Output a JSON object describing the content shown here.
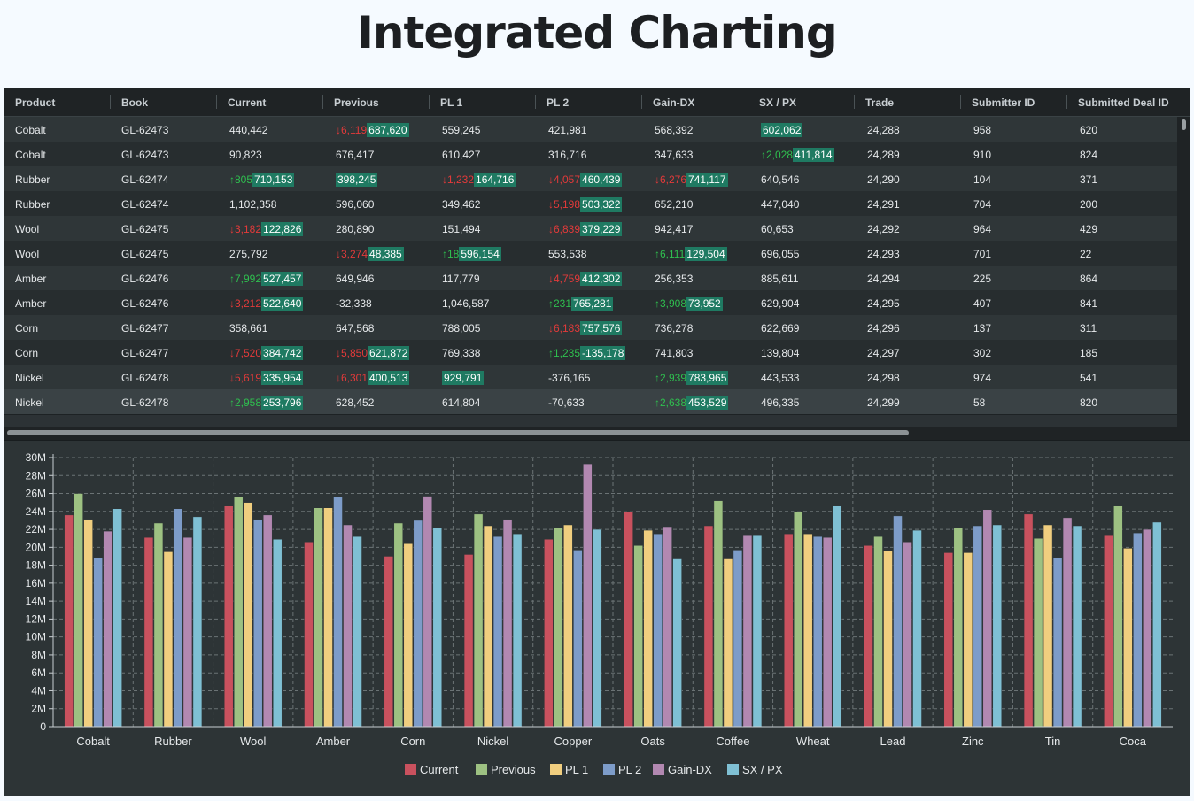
{
  "page": {
    "title": "Integrated Charting"
  },
  "grid": {
    "columns": [
      "Product",
      "Book",
      "Current",
      "Previous",
      "PL 1",
      "PL 2",
      "Gain-DX",
      "SX / PX",
      "Trade",
      "Submitter ID",
      "Submitted Deal ID"
    ],
    "rows": [
      {
        "product": "Cobalt",
        "book": "GL-62473",
        "current": {
          "v": "440,442"
        },
        "previous": {
          "d": "↓6,119",
          "dir": "down",
          "v": "687,620",
          "f": true
        },
        "pl1": {
          "v": "559,245"
        },
        "pl2": {
          "v": "421,981"
        },
        "gain": {
          "v": "568,392"
        },
        "sxpx": {
          "v": "602,062",
          "f": true
        },
        "trade": "24,288",
        "submitter": "958",
        "deal": "620"
      },
      {
        "product": "Cobalt",
        "book": "GL-62473",
        "current": {
          "v": "90,823"
        },
        "previous": {
          "v": "676,417"
        },
        "pl1": {
          "v": "610,427"
        },
        "pl2": {
          "v": "316,716"
        },
        "gain": {
          "v": "347,633"
        },
        "sxpx": {
          "d": "↑2,028",
          "dir": "up",
          "v": "411,814",
          "f": true
        },
        "trade": "24,289",
        "submitter": "910",
        "deal": "824"
      },
      {
        "product": "Rubber",
        "book": "GL-62474",
        "current": {
          "d": "↑805",
          "dir": "up",
          "v": "710,153",
          "f": true
        },
        "previous": {
          "v": "398,245",
          "f": true
        },
        "pl1": {
          "d": "↓1,232",
          "dir": "down",
          "v": "164,716",
          "f": true
        },
        "pl2": {
          "d": "↓4,057",
          "dir": "down",
          "v": "460,439",
          "f": true
        },
        "gain": {
          "d": "↓6,276",
          "dir": "down",
          "v": "741,117",
          "f": true
        },
        "sxpx": {
          "v": "640,546"
        },
        "trade": "24,290",
        "submitter": "104",
        "deal": "371"
      },
      {
        "product": "Rubber",
        "book": "GL-62474",
        "current": {
          "v": "1,102,358"
        },
        "previous": {
          "v": "596,060"
        },
        "pl1": {
          "v": "349,462"
        },
        "pl2": {
          "d": "↓5,198",
          "dir": "down",
          "v": "503,322",
          "f": true
        },
        "gain": {
          "v": "652,210"
        },
        "sxpx": {
          "v": "447,040"
        },
        "trade": "24,291",
        "submitter": "704",
        "deal": "200"
      },
      {
        "product": "Wool",
        "book": "GL-62475",
        "current": {
          "d": "↓3,182",
          "dir": "down",
          "v": "122,826",
          "f": true
        },
        "previous": {
          "v": "280,890"
        },
        "pl1": {
          "v": "151,494"
        },
        "pl2": {
          "d": "↓6,839",
          "dir": "down",
          "v": "379,229",
          "f": true
        },
        "gain": {
          "v": "942,417"
        },
        "sxpx": {
          "v": "60,653"
        },
        "trade": "24,292",
        "submitter": "964",
        "deal": "429"
      },
      {
        "product": "Wool",
        "book": "GL-62475",
        "current": {
          "v": "275,792"
        },
        "previous": {
          "d": "↓3,274",
          "dir": "down",
          "v": "48,385",
          "f": true
        },
        "pl1": {
          "d": "↑18",
          "dir": "up",
          "v": "596,154",
          "f": true
        },
        "pl2": {
          "v": "553,538"
        },
        "gain": {
          "d": "↑6,111",
          "dir": "up",
          "v": "129,504",
          "f": true
        },
        "sxpx": {
          "v": "696,055"
        },
        "trade": "24,293",
        "submitter": "701",
        "deal": "22"
      },
      {
        "product": "Amber",
        "book": "GL-62476",
        "current": {
          "d": "↑7,992",
          "dir": "up",
          "v": "527,457",
          "f": true
        },
        "previous": {
          "v": "649,946"
        },
        "pl1": {
          "v": "117,779"
        },
        "pl2": {
          "d": "↓4,759",
          "dir": "down",
          "v": "412,302",
          "f": true
        },
        "gain": {
          "v": "256,353"
        },
        "sxpx": {
          "v": "885,611"
        },
        "trade": "24,294",
        "submitter": "225",
        "deal": "864"
      },
      {
        "product": "Amber",
        "book": "GL-62476",
        "current": {
          "d": "↓3,212",
          "dir": "down",
          "v": "522,640",
          "f": true
        },
        "previous": {
          "v": "-32,338"
        },
        "pl1": {
          "v": "1,046,587"
        },
        "pl2": {
          "d": "↑231",
          "dir": "up",
          "v": "765,281",
          "f": true
        },
        "gain": {
          "d": "↑3,908",
          "dir": "up",
          "v": "73,952",
          "f": true
        },
        "sxpx": {
          "v": "629,904"
        },
        "trade": "24,295",
        "submitter": "407",
        "deal": "841"
      },
      {
        "product": "Corn",
        "book": "GL-62477",
        "current": {
          "v": "358,661"
        },
        "previous": {
          "v": "647,568"
        },
        "pl1": {
          "v": "788,005"
        },
        "pl2": {
          "d": "↓6,183",
          "dir": "down",
          "v": "757,576",
          "f": true
        },
        "gain": {
          "v": "736,278"
        },
        "sxpx": {
          "v": "622,669"
        },
        "trade": "24,296",
        "submitter": "137",
        "deal": "311"
      },
      {
        "product": "Corn",
        "book": "GL-62477",
        "current": {
          "d": "↓7,520",
          "dir": "down",
          "v": "384,742",
          "f": true
        },
        "previous": {
          "d": "↓5,850",
          "dir": "down",
          "v": "621,872",
          "f": true
        },
        "pl1": {
          "v": "769,338"
        },
        "pl2": {
          "d": "↑1,235",
          "dir": "up",
          "v": "-135,178",
          "f": true
        },
        "gain": {
          "v": "741,803"
        },
        "sxpx": {
          "v": "139,804"
        },
        "trade": "24,297",
        "submitter": "302",
        "deal": "185"
      },
      {
        "product": "Nickel",
        "book": "GL-62478",
        "current": {
          "d": "↓5,619",
          "dir": "down",
          "v": "335,954",
          "f": true
        },
        "previous": {
          "d": "↓6,301",
          "dir": "down",
          "v": "400,513",
          "f": true
        },
        "pl1": {
          "v": "929,791",
          "f": true
        },
        "pl2": {
          "v": "-376,165"
        },
        "gain": {
          "d": "↑2,939",
          "dir": "up",
          "v": "783,965",
          "f": true
        },
        "sxpx": {
          "v": "443,533"
        },
        "trade": "24,298",
        "submitter": "974",
        "deal": "541"
      },
      {
        "product": "Nickel",
        "book": "GL-62478",
        "current": {
          "d": "↑2,958",
          "dir": "up",
          "v": "253,796",
          "f": true
        },
        "previous": {
          "v": "628,452"
        },
        "pl1": {
          "v": "614,804"
        },
        "pl2": {
          "v": "-70,633"
        },
        "gain": {
          "d": "↑2,638",
          "dir": "up",
          "v": "453,529",
          "f": true
        },
        "sxpx": {
          "v": "496,335"
        },
        "trade": "24,299",
        "submitter": "58",
        "deal": "820"
      }
    ]
  },
  "chart_data": {
    "type": "bar",
    "categories": [
      "Cobalt",
      "Rubber",
      "Wool",
      "Amber",
      "Corn",
      "Nickel",
      "Copper",
      "Oats",
      "Coffee",
      "Wheat",
      "Lead",
      "Zinc",
      "Tin",
      "Coca"
    ],
    "series": [
      {
        "name": "Current",
        "color": "#c9515e",
        "values": [
          23.6,
          21.1,
          24.6,
          20.6,
          19.0,
          19.2,
          20.9,
          24.0,
          22.4,
          21.5,
          20.2,
          19.4,
          23.7,
          21.3
        ]
      },
      {
        "name": "Previous",
        "color": "#9dc182",
        "values": [
          26.0,
          22.7,
          25.6,
          24.4,
          22.7,
          23.7,
          22.2,
          20.2,
          25.2,
          24.0,
          21.2,
          22.2,
          21.0,
          24.6
        ]
      },
      {
        "name": "PL 1",
        "color": "#f0ce7f",
        "values": [
          23.1,
          19.5,
          25.0,
          24.4,
          20.4,
          22.4,
          22.5,
          21.9,
          18.7,
          21.5,
          19.6,
          19.4,
          22.5,
          19.9
        ]
      },
      {
        "name": "PL 2",
        "color": "#7d9cc9",
        "values": [
          18.8,
          24.3,
          23.1,
          25.6,
          23.0,
          21.2,
          19.7,
          21.5,
          19.7,
          21.2,
          23.5,
          22.4,
          18.8,
          21.6
        ]
      },
      {
        "name": "Gain-DX",
        "color": "#b288b1",
        "values": [
          21.8,
          21.1,
          23.6,
          22.5,
          25.7,
          23.1,
          29.3,
          22.3,
          21.3,
          21.1,
          20.6,
          24.2,
          23.3,
          22.0
        ]
      },
      {
        "name": "SX / PX",
        "color": "#7fc0d4",
        "values": [
          24.3,
          23.4,
          20.9,
          21.2,
          22.2,
          21.5,
          22.0,
          18.7,
          21.3,
          24.6,
          21.9,
          22.5,
          22.4,
          22.8
        ]
      }
    ],
    "yaxis": {
      "min": 0,
      "max": 30,
      "ticks": [
        "0",
        "2M",
        "4M",
        "6M",
        "8M",
        "10M",
        "12M",
        "14M",
        "16M",
        "18M",
        "20M",
        "22M",
        "24M",
        "26M",
        "28M",
        "30M"
      ]
    },
    "legend_position": "bottom-center",
    "grid": true
  }
}
